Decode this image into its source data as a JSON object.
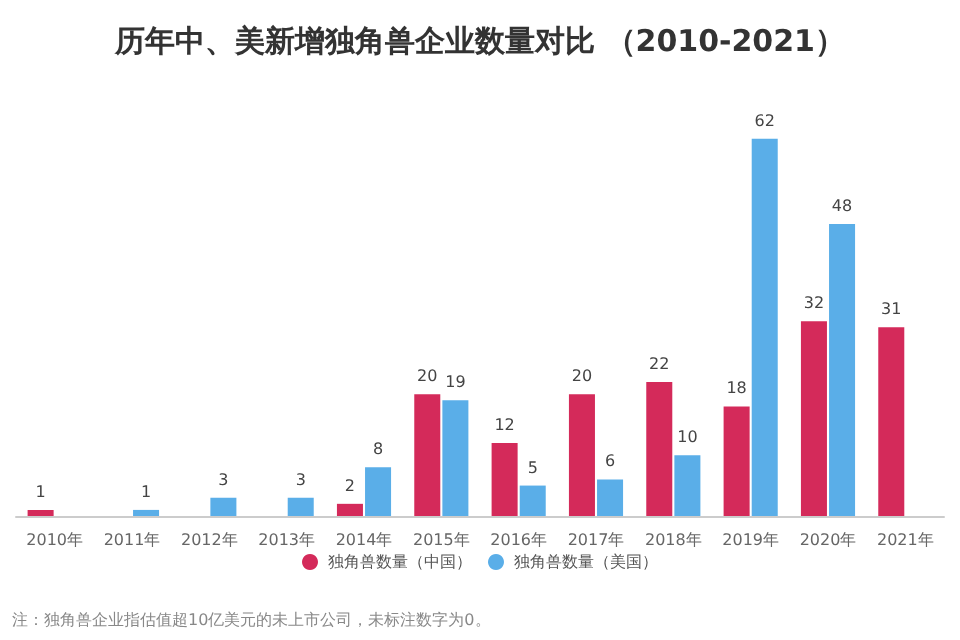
{
  "chart_data": {
    "type": "bar",
    "title": "历年中、美新增独角兽企业数量对比 （2010-2021）",
    "categories": [
      "2010年",
      "2011年",
      "2012年",
      "2013年",
      "2014年",
      "2015年",
      "2016年",
      "2017年",
      "2018年",
      "2019年",
      "2020年",
      "2021年"
    ],
    "series": [
      {
        "name": "独角兽数量（中国）",
        "color": "#d42a5a",
        "values": [
          1,
          0,
          0,
          0,
          2,
          20,
          12,
          20,
          22,
          18,
          32,
          31
        ],
        "value_labels": [
          "1",
          null,
          null,
          null,
          "2",
          "20",
          "12",
          "20",
          "22",
          "18",
          "32",
          "31"
        ]
      },
      {
        "name": "独角兽数量（美国）",
        "color": "#5aaee8",
        "values": [
          0,
          1,
          3,
          3,
          8,
          19,
          5,
          6,
          10,
          62,
          48,
          null
        ],
        "value_labels": [
          null,
          "1",
          "3",
          "3",
          "8",
          "19",
          "5",
          "6",
          "10",
          "62",
          "48",
          null
        ]
      }
    ],
    "legend": "bottom",
    "grid": false,
    "annotations": [
      "注：独角兽企业指估值超10亿美元的未上市公司，未标注数字为0。"
    ]
  }
}
